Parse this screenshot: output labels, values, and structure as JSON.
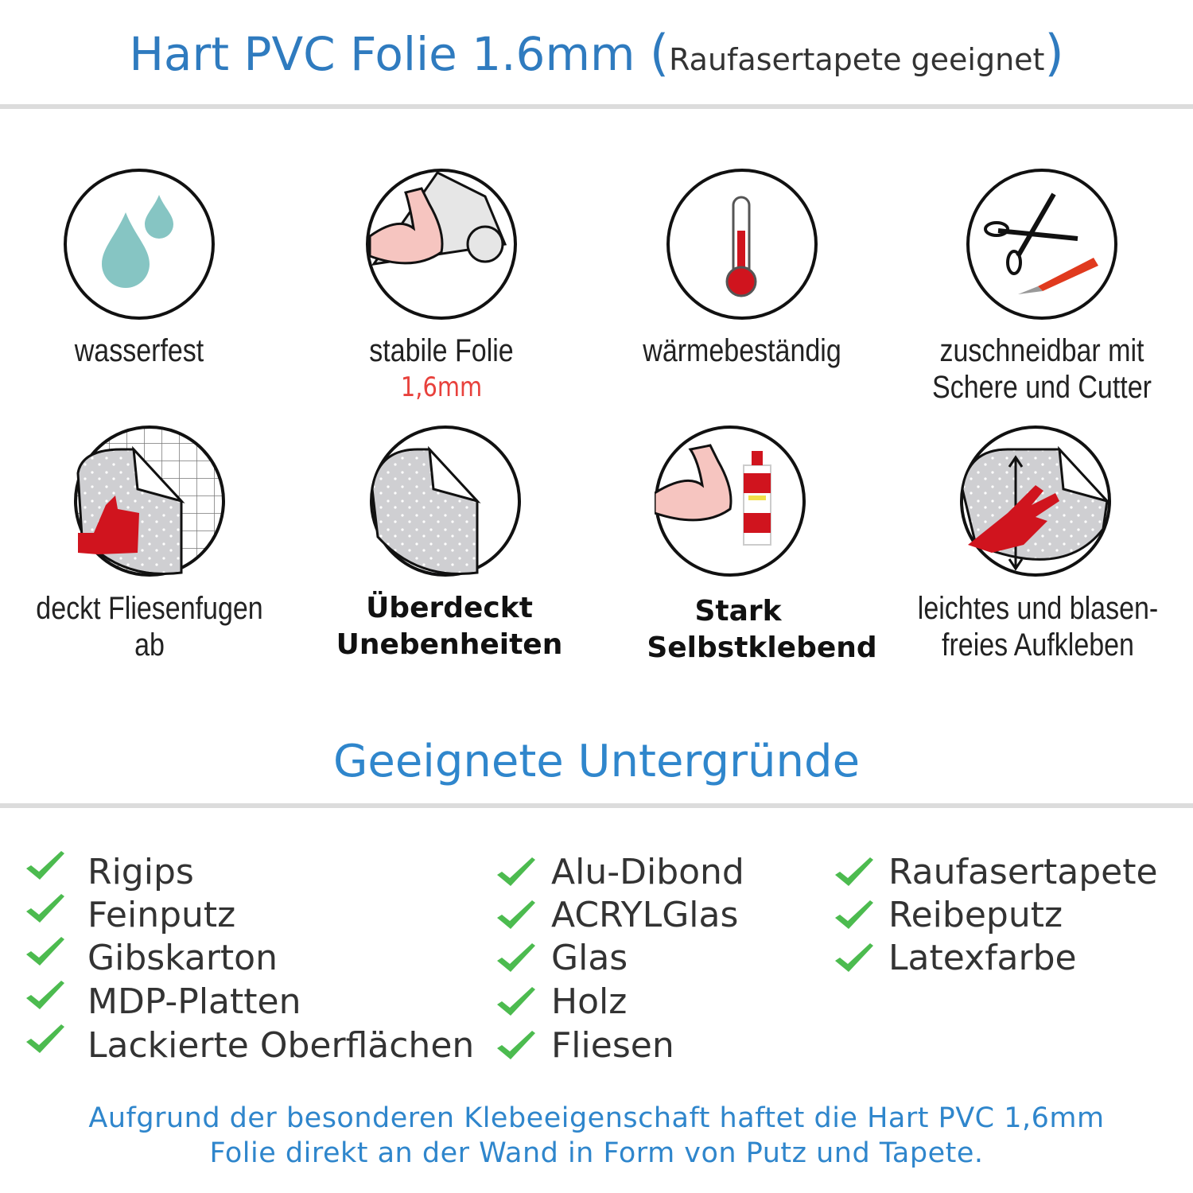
{
  "header": {
    "title": "Hart PVC Folie 1.6mm",
    "subtitle_open": "(",
    "subtitle": "Raufasertapete geeignet",
    "subtitle_close": ")"
  },
  "features": [
    {
      "icon": "water-drops-icon",
      "line1": "wasserfest",
      "line2": ""
    },
    {
      "icon": "flexed-arm-foil-icon",
      "line1": "stabile Folie",
      "line2": "1,6mm"
    },
    {
      "icon": "thermometer-icon",
      "line1": "wärmebeständig",
      "line2": ""
    },
    {
      "icon": "scissors-cutter-icon",
      "line1": "zuschneidbar mit",
      "line2": "Schere und Cutter"
    },
    {
      "icon": "tile-cover-thumbs-up-icon",
      "line1": "deckt Fliesenfugen ab",
      "line2": ""
    },
    {
      "icon": "foil-corner-icon",
      "line1": "Überdeckt",
      "line2": "Unebenheiten"
    },
    {
      "icon": "arm-glue-tube-icon",
      "line1": "Stark",
      "line2": "Selbstklebend"
    },
    {
      "icon": "hand-smoothing-icon",
      "line1": "leichtes und blasen-",
      "line2": "freies Aufkleben"
    }
  ],
  "surfaces": {
    "heading": "Geeignete Untergründe",
    "columns": [
      [
        "Rigips",
        "Feinputz",
        "Gibskarton",
        "MDP-Platten",
        "Lackierte Oberflächen"
      ],
      [
        "Alu-Dibond",
        "ACRYLGlas",
        "Glas",
        "Holz",
        "Fliesen"
      ],
      [
        "Raufasertapete",
        "Reibeputz",
        "Latexfarbe"
      ]
    ]
  },
  "footer": {
    "line1": "Aufgrund der besonderen Klebeeigenschaft haftet die Hart PVC 1,6mm",
    "line2": "Folie direkt an der Wand in Form von Putz und Tapete."
  },
  "colors": {
    "accent": "#2f7bbf",
    "check": "#4cbb4f",
    "highlight": "#e8413c",
    "icon_red": "#d0141e",
    "drop": "#86c5c3"
  }
}
